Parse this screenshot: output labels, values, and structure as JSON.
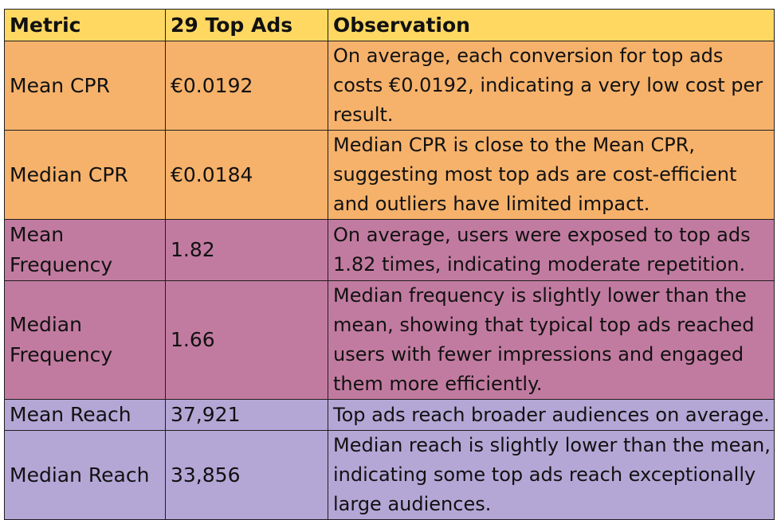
{
  "colors": {
    "header": "#ffd862",
    "cpr_rows": "#f6b26b",
    "frequency_rows": "#c27ba0",
    "reach_rows": "#b4a7d6",
    "border": "#1f1f1f"
  },
  "headers": [
    "Metric",
    "29 Top Ads",
    "Observation"
  ],
  "rows": [
    {
      "metric": "Mean CPR",
      "value": "€0.0192",
      "observation": "On average, each conversion for top ads costs €0.0192, indicating a very low cost per result."
    },
    {
      "metric": "Median CPR",
      "value": "€0.0184",
      "observation": "Median CPR is close to the Mean CPR, suggesting most top ads are cost-efficient and outliers have limited impact."
    },
    {
      "metric": "Mean Frequency",
      "value": "1.82",
      "observation": "On average, users were exposed to top ads 1.82 times, indicating moderate repetition."
    },
    {
      "metric": "Median Frequency",
      "value": "1.66",
      "observation": "Median frequency is slightly lower than the mean, showing that typical top ads reached users with fewer impressions and engaged them more efficiently."
    },
    {
      "metric": "Mean Reach",
      "value": "37,921",
      "observation": "Top ads reach broader audiences on average."
    },
    {
      "metric": "Median Reach",
      "value": "33,856",
      "observation": "Median reach is slightly lower than the mean, indicating some top ads reach exceptionally large audiences."
    }
  ]
}
